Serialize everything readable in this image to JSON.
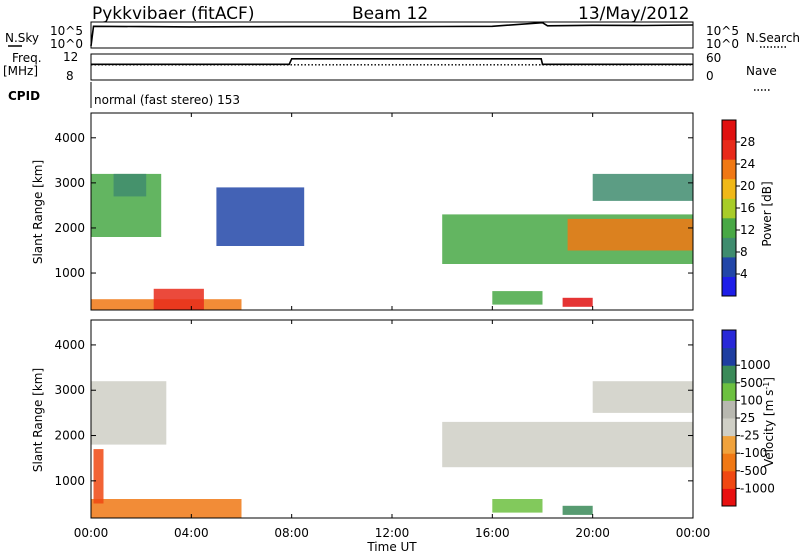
{
  "header": {
    "station": "Pykkvibaer (fitACF)",
    "beam": "Beam 12",
    "date": "13/May/2012"
  },
  "left_labels": {
    "nsky": "N.Sky",
    "freq": "Freq.",
    "freq_unit": "[MHz]",
    "cpid": "CPID"
  },
  "right_labels": {
    "nsearch": "N.Search",
    "nave": "Nave"
  },
  "cpid_text": "normal (fast stereo) 153",
  "x_axis_label": "Time UT",
  "y_axis_label": "Slant Range [km]",
  "colors": {
    "power_bar": [
      "#1e1ee8",
      "#2246a8",
      "#3f8c6e",
      "#48a845",
      "#a8cc28",
      "#f0b818",
      "#f07814",
      "#e82a1a",
      "#e01010"
    ],
    "velocity_bar": [
      "#e81010",
      "#f04812",
      "#f07814",
      "#f0a23c",
      "#cfcfc6",
      "#b8b8b0",
      "#6cc040",
      "#3a8a58",
      "#1e3ea0",
      "#2828d8"
    ]
  },
  "chart_data": [
    {
      "type": "line",
      "panel": "noise",
      "x_range": [
        0,
        24
      ],
      "x_ticks": [
        "00:00",
        "04:00",
        "08:00",
        "12:00",
        "16:00",
        "20:00",
        "00:00"
      ],
      "left_axis": {
        "label": "N.Sky",
        "ticks": [
          "10^5",
          "10^0"
        ],
        "scale": "log"
      },
      "right_axis": {
        "label": "N.Search",
        "ticks": [
          "10^5",
          "10^0"
        ],
        "scale": "log"
      },
      "series": [
        {
          "name": "N.Sky",
          "style": "solid",
          "x": [
            0,
            0.1,
            2,
            4,
            6,
            8,
            10,
            12,
            14,
            16,
            18,
            18.2,
            20,
            22,
            24
          ],
          "y": [
            1,
            30000,
            25000,
            22000,
            24000,
            26000,
            25000,
            24000,
            27000,
            30000,
            200000,
            40000,
            50000,
            45000,
            60000
          ]
        },
        {
          "name": "N.Search",
          "style": "dotted",
          "x": [
            0,
            24
          ],
          "y": [
            null,
            null
          ]
        }
      ]
    },
    {
      "type": "line",
      "panel": "frequency",
      "x_range": [
        0,
        24
      ],
      "left_axis": {
        "label": "Freq. [MHz]",
        "ticks": [
          8,
          12
        ],
        "range": [
          8,
          12
        ]
      },
      "right_axis": {
        "label": "Nave",
        "ticks": [
          0,
          60
        ],
        "range": [
          0,
          60
        ]
      },
      "series": [
        {
          "name": "Freq.",
          "style": "solid",
          "x": [
            0,
            7.9,
            8,
            17.95,
            18,
            24
          ],
          "y": [
            10.5,
            10.5,
            11.5,
            11.5,
            10.5,
            10.5
          ]
        },
        {
          "name": "Nave",
          "style": "dotted",
          "x": [
            0,
            24
          ],
          "y": [
            36,
            36
          ]
        }
      ]
    },
    {
      "type": "heatmap",
      "panel": "power",
      "x_range": [
        0,
        24
      ],
      "xlabel": "",
      "ylabel": "Slant Range [km]",
      "ylim": [
        180,
        4550
      ],
      "y_ticks": [
        1000,
        2000,
        3000,
        4000
      ],
      "colorbar": {
        "label": "Power [dB]",
        "ticks": [
          4,
          8,
          12,
          16,
          20,
          24,
          28
        ],
        "range": [
          0,
          32
        ]
      },
      "regions": [
        {
          "x": [
            0,
            2.8
          ],
          "y": [
            1800,
            3200
          ],
          "value": 14
        },
        {
          "x": [
            0.9,
            2.2
          ],
          "y": [
            2700,
            3200
          ],
          "value": 10
        },
        {
          "x": [
            0,
            6
          ],
          "y": [
            180,
            420
          ],
          "value": 22
        },
        {
          "x": [
            2.5,
            4.5
          ],
          "y": [
            180,
            650
          ],
          "value": 26
        },
        {
          "x": [
            5,
            8.5
          ],
          "y": [
            1600,
            2900
          ],
          "value": 5
        },
        {
          "x": [
            14,
            24
          ],
          "y": [
            1200,
            2300
          ],
          "value": 14
        },
        {
          "x": [
            19,
            24
          ],
          "y": [
            1500,
            2200
          ],
          "value": 22
        },
        {
          "x": [
            16,
            18
          ],
          "y": [
            300,
            600
          ],
          "value": 12
        },
        {
          "x": [
            18.8,
            20
          ],
          "y": [
            250,
            450
          ],
          "value": 30
        },
        {
          "x": [
            20,
            24
          ],
          "y": [
            2600,
            3200
          ],
          "value": 8
        }
      ]
    },
    {
      "type": "heatmap",
      "panel": "velocity",
      "x_range": [
        0,
        24
      ],
      "xlabel": "Time UT",
      "ylabel": "Slant Range [km]",
      "ylim": [
        180,
        4550
      ],
      "y_ticks": [
        1000,
        2000,
        3000,
        4000
      ],
      "colorbar": {
        "label": "Velocity [m s-1]",
        "ticks": [
          -1000,
          -500,
          -100,
          -25,
          25,
          100,
          500,
          1000
        ],
        "scale": "symlog"
      },
      "regions": [
        {
          "x": [
            0,
            3
          ],
          "y": [
            1800,
            3200
          ],
          "value": 0
        },
        {
          "x": [
            0,
            6
          ],
          "y": [
            180,
            600
          ],
          "value": -300
        },
        {
          "x": [
            0.1,
            0.5
          ],
          "y": [
            500,
            1700
          ],
          "value": -600
        },
        {
          "x": [
            14,
            24
          ],
          "y": [
            1300,
            2300
          ],
          "value": 0
        },
        {
          "x": [
            16,
            18
          ],
          "y": [
            300,
            600
          ],
          "value": 150
        },
        {
          "x": [
            18.8,
            20
          ],
          "y": [
            250,
            450
          ],
          "value": 900
        },
        {
          "x": [
            20,
            24
          ],
          "y": [
            2500,
            3200
          ],
          "value": 0
        }
      ]
    }
  ]
}
